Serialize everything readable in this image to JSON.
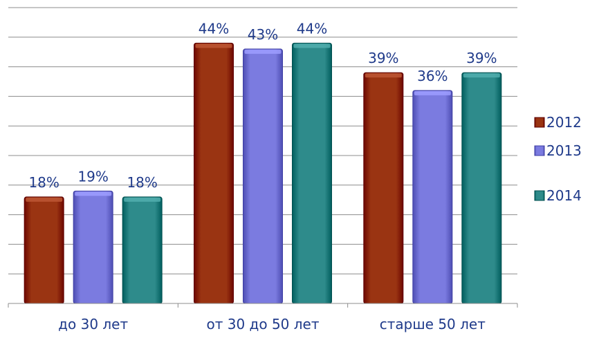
{
  "chart_data": {
    "type": "bar",
    "categories": [
      "до 30 лет",
      "от 30 до 50 лет",
      "старше 50 лет"
    ],
    "series": [
      {
        "name": "2012",
        "values": [
          18,
          44,
          39
        ],
        "labels": [
          "18%",
          "44%",
          "39%"
        ],
        "color": "#9a3412"
      },
      {
        "name": "2013",
        "values": [
          19,
          43,
          36
        ],
        "labels": [
          "19%",
          "43%",
          "36%"
        ],
        "color": "#7b7be0"
      },
      {
        "name": "2014",
        "values": [
          18,
          44,
          39
        ],
        "labels": [
          "18%",
          "44%",
          "39%"
        ],
        "color": "#2e8b8b"
      }
    ],
    "ylim": [
      0,
      50
    ],
    "grid": true,
    "legend_position": "right"
  }
}
